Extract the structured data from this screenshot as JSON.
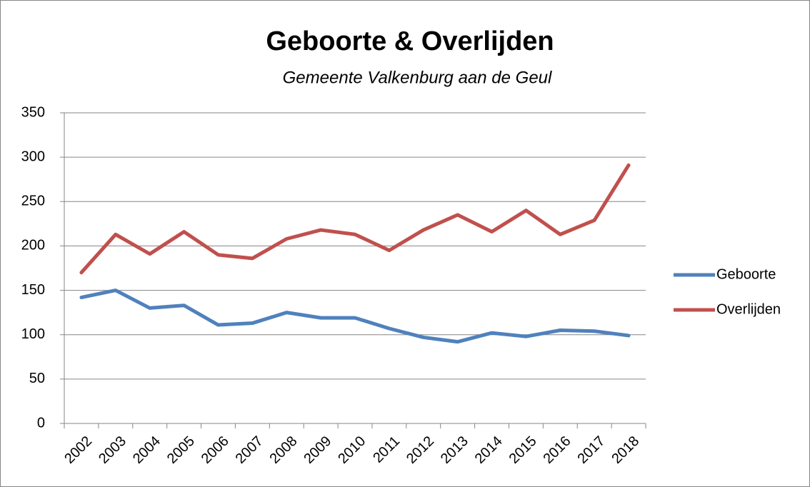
{
  "chart_data": {
    "type": "line",
    "title": "Geboorte & Overlijden",
    "subtitle": "Gemeente Valkenburg aan de Geul",
    "categories": [
      "2002",
      "2003",
      "2004",
      "2005",
      "2006",
      "2007",
      "2008",
      "2009",
      "2010",
      "2011",
      "2012",
      "2013",
      "2014",
      "2015",
      "2016",
      "2017",
      "2018"
    ],
    "series": [
      {
        "name": "Geboorte",
        "color": "#4f81bd",
        "values": [
          142,
          150,
          130,
          133,
          111,
          113,
          125,
          119,
          119,
          107,
          97,
          92,
          102,
          98,
          105,
          104,
          99
        ]
      },
      {
        "name": "Overlijden",
        "color": "#c0504d",
        "values": [
          170,
          213,
          191,
          216,
          190,
          186,
          208,
          218,
          213,
          195,
          218,
          235,
          216,
          240,
          213,
          229,
          291
        ]
      }
    ],
    "ylim": [
      0,
      350
    ],
    "yticks": [
      0,
      50,
      100,
      150,
      200,
      250,
      300,
      350
    ],
    "grid": true,
    "legend": "right"
  }
}
